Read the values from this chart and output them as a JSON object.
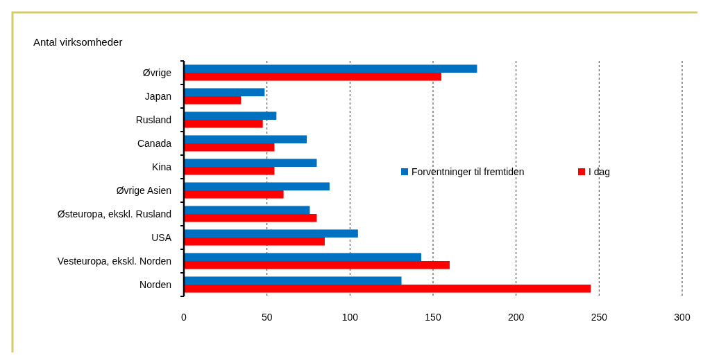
{
  "chart_data": {
    "type": "bar",
    "orientation": "horizontal",
    "ylabel": "Antal virksomheder",
    "categories": [
      "Øvrige",
      "Japan",
      "Rusland",
      "Canada",
      "Kina",
      "Øvrige Asien",
      "Østeuropa, ekskl. Rusland",
      "USA",
      "Vesteuropa, ekskl. Norden",
      "Norden"
    ],
    "series": [
      {
        "name": "Forventninger til fremtiden",
        "color": "#0070c0",
        "values": [
          176.5,
          48.6,
          55.7,
          74,
          80,
          87.7,
          75.8,
          104.8,
          142.9,
          131
        ]
      },
      {
        "name": "I dag",
        "color": "#ff0000",
        "values": [
          155,
          34.4,
          47.5,
          54.5,
          54.5,
          60,
          80,
          84.8,
          160,
          245
        ]
      }
    ],
    "xlim": [
      0,
      300
    ],
    "xticks": [
      0,
      50,
      100,
      150,
      200,
      250,
      300
    ],
    "grid": "x",
    "legend": "right"
  }
}
